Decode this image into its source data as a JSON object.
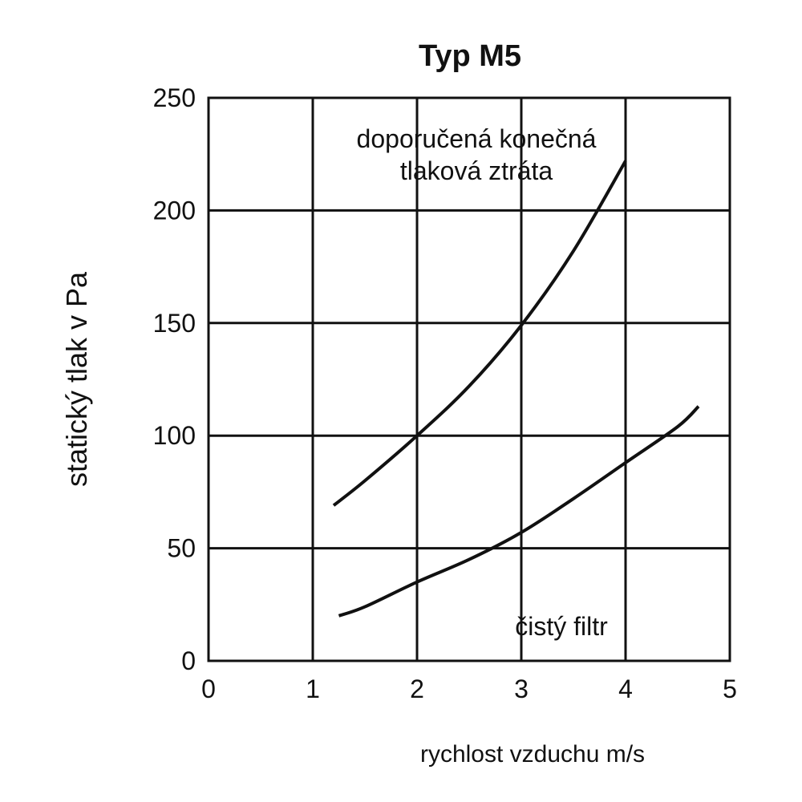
{
  "chart_data": {
    "type": "line",
    "title": "Typ M5",
    "xlabel": "rychlost vzduchu m/s",
    "ylabel": "statický tlak v Pa",
    "xlim": [
      0,
      5
    ],
    "ylim": [
      0,
      250
    ],
    "x_ticks": [
      "0",
      "1",
      "2",
      "3",
      "4",
      "5"
    ],
    "y_ticks": [
      "0",
      "50",
      "100",
      "150",
      "200",
      "250"
    ],
    "grid": true,
    "series": [
      {
        "name": "doporučená konečná tlaková ztráta",
        "x": [
          1.2,
          1.5,
          2.0,
          2.5,
          3.0,
          3.5,
          4.0
        ],
        "y": [
          69,
          80,
          100,
          122,
          149,
          182,
          222
        ]
      },
      {
        "name": "čistý filtr",
        "x": [
          1.25,
          1.5,
          2.0,
          2.5,
          3.0,
          3.5,
          4.0,
          4.5,
          4.7
        ],
        "y": [
          20,
          24,
          35,
          45,
          57,
          72,
          88,
          104,
          113
        ]
      }
    ],
    "annotations": [
      {
        "lines": [
          "doporučená konečná",
          "tlaková ztráta"
        ],
        "series": 0
      },
      {
        "lines": [
          "čistý filtr"
        ],
        "series": 1
      }
    ],
    "colors": {
      "line": "#111111",
      "grid": "#111111",
      "background": "#ffffff"
    }
  }
}
